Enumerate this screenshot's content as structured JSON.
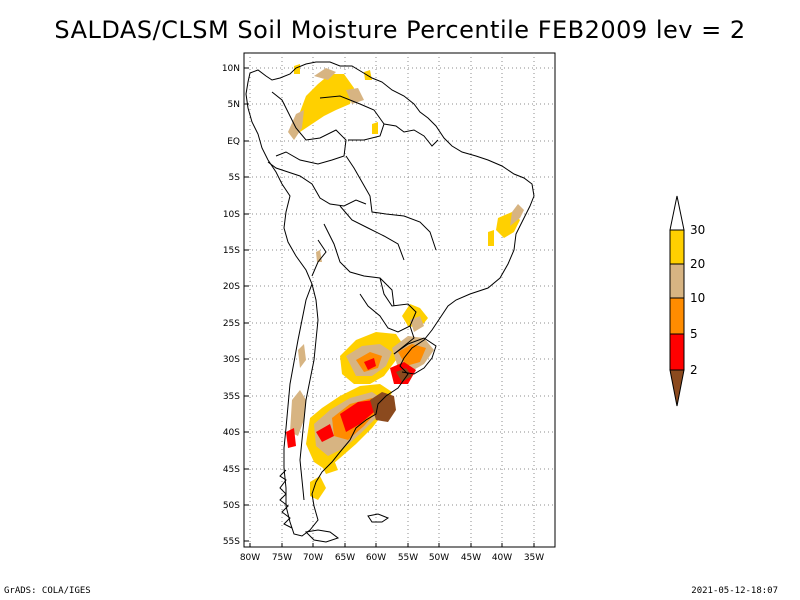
{
  "title": "SALDAS/CLSM Soil Moisture Percentile FEB2009 lev = 2",
  "footer_left": "GrADS: COLA/IGES",
  "footer_right": "2021-05-12-18:07",
  "lat_labels": [
    "10N",
    "5N",
    "EQ",
    "5S",
    "10S",
    "15S",
    "20S",
    "25S",
    "30S",
    "35S",
    "40S",
    "45S",
    "50S",
    "55S"
  ],
  "lon_labels": [
    "80W",
    "75W",
    "70W",
    "65W",
    "60W",
    "55W",
    "50W",
    "45W",
    "40W",
    "35W"
  ],
  "colorbar": {
    "labels": [
      "30",
      "20",
      "10",
      "5",
      "2"
    ],
    "colors": {
      "above30": "#ffffff",
      "c20_30": "#ffd000",
      "c10_20": "#d7b482",
      "c5_10": "#ff8c00",
      "c2_5": "#ff0000",
      "below2": "#8b4a1e"
    }
  },
  "colors": {
    "gridline": "#8c8c8c",
    "coast": "#000000"
  }
}
